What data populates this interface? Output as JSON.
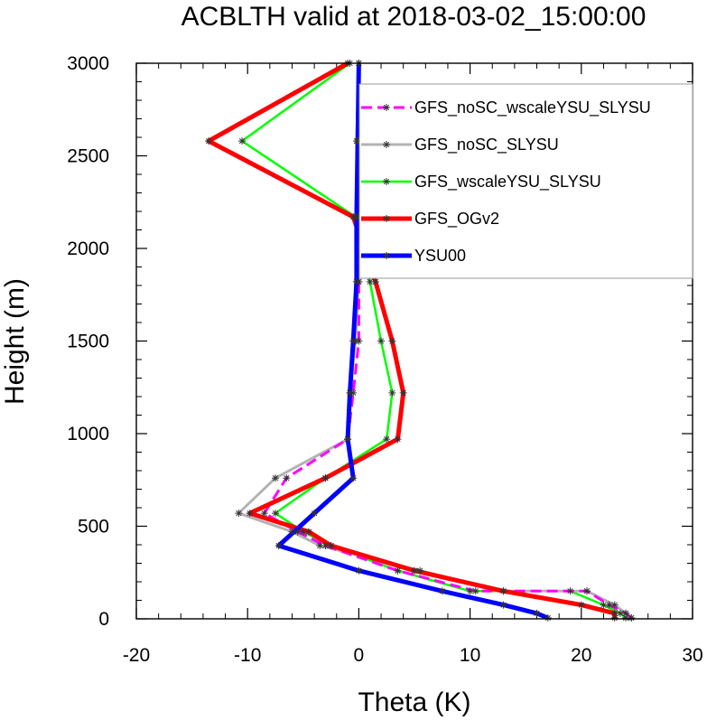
{
  "chart_data": {
    "type": "line",
    "title": "ACBLTH valid at 2018-03-02_15:00:00",
    "xlabel": "Theta (K)",
    "ylabel": "Height (m)",
    "xlim": [
      -20,
      30
    ],
    "ylim": [
      0,
      3000
    ],
    "xticks": [
      -20,
      -10,
      0,
      10,
      20,
      30
    ],
    "yticks": [
      0,
      500,
      1000,
      1500,
      2000,
      2500,
      3000
    ],
    "legend_position": "top-right",
    "series": [
      {
        "name": "GFS_noSC_wscaleYSU_SLYSU",
        "color": "#ff00ff",
        "dash": true,
        "points": [
          [
            24.5,
            5
          ],
          [
            24.0,
            30
          ],
          [
            22.5,
            75
          ],
          [
            20.5,
            150
          ],
          [
            10.5,
            150
          ],
          [
            3.5,
            260
          ],
          [
            -3.0,
            395
          ],
          [
            -5.5,
            470
          ],
          [
            -8.5,
            570
          ],
          [
            -6.5,
            760
          ],
          [
            -1.0,
            970
          ],
          [
            -0.5,
            1220
          ],
          [
            0,
            1500
          ],
          [
            0,
            1820
          ],
          [
            0,
            2170
          ],
          [
            0,
            2580
          ],
          [
            0,
            3000
          ]
        ]
      },
      {
        "name": "GFS_noSC_SLYSU",
        "color": "#b3b3b3",
        "dash": false,
        "points": [
          [
            24.5,
            5
          ],
          [
            24.0,
            30
          ],
          [
            23.0,
            75
          ],
          [
            20.5,
            150
          ],
          [
            13.0,
            150
          ],
          [
            5.5,
            260
          ],
          [
            -3.5,
            395
          ],
          [
            -6.0,
            470
          ],
          [
            -10.8,
            570
          ],
          [
            -7.5,
            760
          ],
          [
            -1.0,
            970
          ],
          [
            -0.8,
            1220
          ],
          [
            -0.3,
            1500
          ],
          [
            0,
            1820
          ],
          [
            -0.2,
            2170
          ],
          [
            -0.2,
            2580
          ],
          [
            0,
            3000
          ]
        ]
      },
      {
        "name": "GFS_wscaleYSU_SLYSU",
        "color": "#00ff00",
        "dash": false,
        "points": [
          [
            24.0,
            5
          ],
          [
            23.5,
            30
          ],
          [
            22.0,
            75
          ],
          [
            19.0,
            150
          ],
          [
            10.0,
            150
          ],
          [
            3.5,
            260
          ],
          [
            -2.5,
            395
          ],
          [
            -5.0,
            470
          ],
          [
            -7.5,
            570
          ],
          [
            -3.0,
            760
          ],
          [
            2.5,
            970
          ],
          [
            3.0,
            1220
          ],
          [
            2.0,
            1500
          ],
          [
            1.0,
            1820
          ],
          [
            -0.3,
            2170
          ],
          [
            -10.5,
            2580
          ],
          [
            -0.8,
            3000
          ]
        ]
      },
      {
        "name": "GFS_OGv2",
        "color": "#ff0000",
        "dash": false,
        "points": [
          [
            23.0,
            5
          ],
          [
            23.0,
            30
          ],
          [
            20.0,
            75
          ],
          [
            13.0,
            150
          ],
          [
            5.0,
            260
          ],
          [
            -2.5,
            395
          ],
          [
            -4.5,
            470
          ],
          [
            -9.8,
            570
          ],
          [
            -3.0,
            760
          ],
          [
            3.5,
            970
          ],
          [
            4.0,
            1220
          ],
          [
            3.0,
            1500
          ],
          [
            1.5,
            1820
          ],
          [
            -0.5,
            2170
          ],
          [
            -13.5,
            2580
          ],
          [
            -1.0,
            3000
          ]
        ]
      },
      {
        "name": "YSU00",
        "color": "#0000ff",
        "dash": false,
        "points": [
          [
            17.0,
            5
          ],
          [
            16.0,
            30
          ],
          [
            13.0,
            75
          ],
          [
            7.5,
            150
          ],
          [
            0,
            260
          ],
          [
            -7.2,
            395
          ],
          [
            -4.0,
            570
          ],
          [
            -0.5,
            760
          ],
          [
            -1.0,
            970
          ],
          [
            -0.8,
            1220
          ],
          [
            -0.5,
            1500
          ],
          [
            -0.2,
            1820
          ],
          [
            -0.2,
            2170
          ],
          [
            -0.1,
            2580
          ],
          [
            0,
            3000
          ]
        ]
      }
    ]
  }
}
